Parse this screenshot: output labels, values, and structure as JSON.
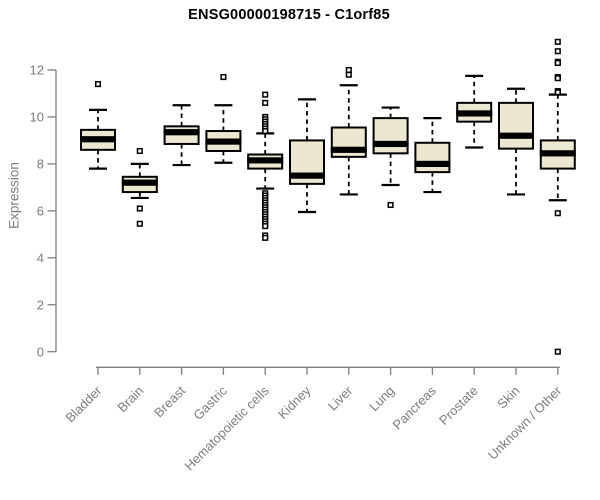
{
  "chart_data": {
    "type": "boxplot",
    "title": "ENSG00000198715 - C1orf85",
    "ylabel": "Expression",
    "xlabel": "",
    "yticks": [
      0,
      2,
      4,
      6,
      8,
      10,
      12
    ],
    "ylim": [
      0,
      13.5
    ],
    "grid": false,
    "legend": "none",
    "categories": [
      "Bladder",
      "Brain",
      "Breast",
      "Gastric",
      "Hematopoietic cells",
      "Kidney",
      "Liver",
      "Lung",
      "Pancreas",
      "Prostate",
      "Skin",
      "Unknown / Other"
    ],
    "series": [
      {
        "whisker_low": 7.8,
        "q1": 8.6,
        "median": 9.05,
        "q3": 9.45,
        "whisker_high": 10.3,
        "outliers": [
          11.4
        ]
      },
      {
        "whisker_low": 6.55,
        "q1": 6.8,
        "median": 7.2,
        "q3": 7.45,
        "whisker_high": 8.0,
        "outliers": [
          8.55,
          6.1,
          5.45
        ]
      },
      {
        "whisker_low": 7.95,
        "q1": 8.85,
        "median": 9.35,
        "q3": 9.6,
        "whisker_high": 10.5,
        "outliers": []
      },
      {
        "whisker_low": 8.05,
        "q1": 8.55,
        "median": 8.95,
        "q3": 9.4,
        "whisker_high": 10.5,
        "outliers": [
          11.7
        ]
      },
      {
        "whisker_low": 6.95,
        "q1": 7.8,
        "median": 8.15,
        "q3": 8.4,
        "whisker_high": 9.3,
        "outliers": [
          10.95,
          10.6,
          10.0,
          9.9,
          9.8,
          9.7,
          9.6,
          9.5,
          9.4,
          6.75,
          6.65,
          6.55,
          6.45,
          6.35,
          6.25,
          6.15,
          6.05,
          5.95,
          5.85,
          5.75,
          5.65,
          5.55,
          5.45,
          5.35,
          4.95,
          4.85
        ]
      },
      {
        "whisker_low": 5.95,
        "q1": 7.15,
        "median": 7.5,
        "q3": 9.0,
        "whisker_high": 10.75,
        "outliers": []
      },
      {
        "whisker_low": 6.7,
        "q1": 8.3,
        "median": 8.6,
        "q3": 9.55,
        "whisker_high": 11.35,
        "outliers": [
          12.0,
          11.8
        ]
      },
      {
        "whisker_low": 7.1,
        "q1": 8.45,
        "median": 8.85,
        "q3": 9.95,
        "whisker_high": 10.4,
        "outliers": [
          6.25
        ]
      },
      {
        "whisker_low": 6.8,
        "q1": 7.65,
        "median": 8.0,
        "q3": 8.9,
        "whisker_high": 9.95,
        "outliers": []
      },
      {
        "whisker_low": 8.7,
        "q1": 9.8,
        "median": 10.15,
        "q3": 10.6,
        "whisker_high": 11.75,
        "outliers": []
      },
      {
        "whisker_low": 6.7,
        "q1": 8.65,
        "median": 9.2,
        "q3": 10.6,
        "whisker_high": 11.2,
        "outliers": []
      },
      {
        "whisker_low": 6.45,
        "q1": 7.8,
        "median": 8.45,
        "q3": 9.0,
        "whisker_high": 10.95,
        "outliers": [
          13.2,
          12.8,
          12.35,
          12.3,
          11.7,
          11.65,
          11.1,
          11.05,
          5.9,
          0
        ]
      }
    ],
    "colors": {
      "background": "#ffffff",
      "box_fill": "#ece7d0",
      "box_border": "#000000",
      "median": "#000000",
      "whisker": "#000000",
      "outlier": "#000000",
      "axis": "#7d7d7d",
      "tick_text": "#7d7d7d",
      "title": "#000000"
    }
  }
}
